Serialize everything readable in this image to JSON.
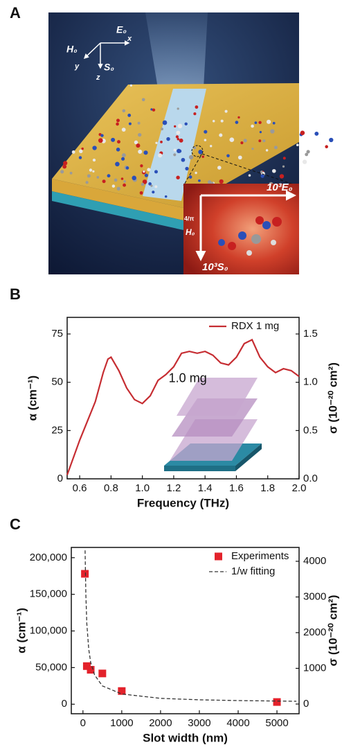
{
  "illustration": {
    "label": "A",
    "axes": [
      "E₀",
      "x",
      "H₀",
      "y",
      "S₀",
      "z"
    ],
    "inset": [
      "10³E₀",
      "4/π",
      "H₀",
      "10³S₀"
    ]
  },
  "chart_data": [
    {
      "type": "line",
      "label": "B",
      "xlabel": "Frequency (THz)",
      "ylabel": "α (cm⁻¹)",
      "y2label": "σ (10⁻²⁰ cm²)",
      "annotation": "1.0 mg",
      "x": [
        0.52,
        0.6,
        0.65,
        0.7,
        0.75,
        0.78,
        0.8,
        0.85,
        0.9,
        0.95,
        1.0,
        1.05,
        1.1,
        1.15,
        1.2,
        1.25,
        1.3,
        1.35,
        1.4,
        1.45,
        1.5,
        1.55,
        1.6,
        1.65,
        1.7,
        1.75,
        1.8,
        1.85,
        1.9,
        1.95,
        2.0
      ],
      "series": [
        {
          "name": "RDX 1 mg",
          "color": "#c62d32",
          "values": [
            2,
            20,
            30,
            40,
            55,
            62,
            63,
            56,
            47,
            41,
            39,
            43,
            51,
            54,
            58,
            65,
            66,
            65,
            66,
            64,
            60,
            59,
            63,
            70,
            72,
            63,
            58,
            55,
            57,
            56,
            53
          ]
        }
      ],
      "xlim": [
        0.52,
        2.0
      ],
      "xticks": [
        0.6,
        0.8,
        {
          "value": 1,
          "label": "1.0"
        },
        1.2,
        1.4,
        1.6,
        1.8,
        {
          "value": 2,
          "label": "2.0"
        }
      ],
      "ylim": [
        0,
        83.6
      ],
      "yticks": [
        0,
        25,
        50,
        75
      ],
      "y2lim": [
        0,
        1.672
      ],
      "y2ticks": [
        {
          "value": 0,
          "label": "0.0"
        },
        0.5,
        {
          "value": 1,
          "label": "1.0"
        },
        1.5
      ],
      "legend": "upper right"
    },
    {
      "type": "scatter",
      "label": "C",
      "xlabel": "Slot width (nm)",
      "ylabel": "α (cm⁻¹)",
      "y2label": "σ (10⁻²⁰ cm²)",
      "series": [
        {
          "name": "Experiments",
          "color": "#e3222b",
          "marker": "square",
          "x": [
            50,
            100,
            200,
            500,
            1000,
            5000
          ],
          "values": [
            178000,
            52000,
            47000,
            42000,
            18000,
            3000
          ]
        },
        {
          "name": "1/w fitting",
          "color": "#333333",
          "dash": true,
          "x": [
            55,
            75,
            100,
            150,
            200,
            300,
            500,
            1000,
            2000,
            3000,
            4000,
            5500
          ],
          "values": [
            210000,
            150000,
            110000,
            75000,
            57000,
            40000,
            25000,
            14000,
            8000,
            6000,
            5000,
            4000
          ]
        }
      ],
      "xlim": [
        -300,
        5570
      ],
      "xticks": [
        0,
        1000,
        2000,
        3000,
        4000,
        5000
      ],
      "ylim": [
        -13000,
        214000
      ],
      "yticks": [
        0,
        {
          "value": 50000,
          "label": "50,000"
        },
        {
          "value": 100000,
          "label": "100,000"
        },
        {
          "value": 150000,
          "label": "150,000"
        },
        {
          "value": 200000,
          "label": "200,000"
        }
      ],
      "y2lim": [
        -272,
        4388
      ],
      "y2ticks": [
        0,
        1000,
        2000,
        3000,
        4000
      ],
      "legend": "upper right"
    }
  ]
}
